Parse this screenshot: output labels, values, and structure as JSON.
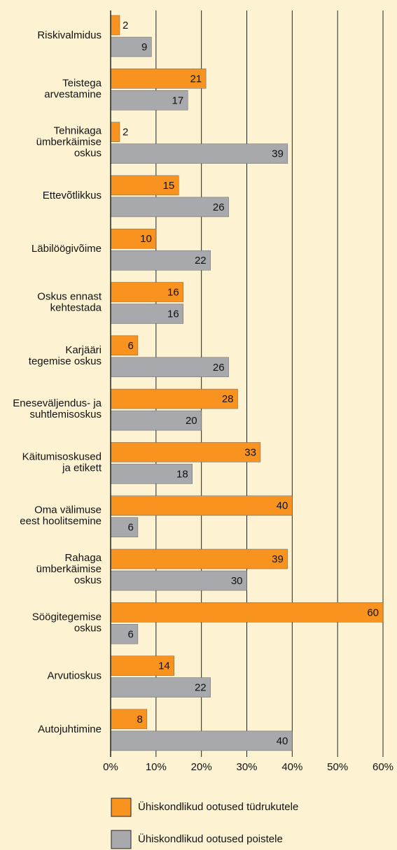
{
  "chart_data": {
    "type": "bar",
    "orientation": "horizontal",
    "categories": [
      "Riskivalmidus",
      "Teistega\narvestamine",
      "Tehnikaga\nümberkäimise\noskus",
      "Ettevõtlikkus",
      "Läbilöögivõime",
      "Oskus ennast\nkehtestada",
      "Karjääri\ntegemise oskus",
      "Eneseväljendus- ja\nsuhtlemisoskus",
      "Käitumisoskused\nja etikett",
      "Oma välimuse\neest hoolitsemine",
      "Rahaga\nümberkäimise\noskus",
      "Söögitegemise\noskus",
      "Arvutioskus",
      "Autojuhtimine"
    ],
    "series": [
      {
        "name": "Ühiskondlikud ootused tüdrukutele",
        "color": "#f7931e",
        "values": [
          2,
          21,
          2,
          15,
          10,
          16,
          6,
          28,
          33,
          40,
          39,
          60,
          14,
          8
        ]
      },
      {
        "name": "Ühiskondlikud ootused poistele",
        "color": "#a7a9ac",
        "values": [
          9,
          17,
          39,
          26,
          22,
          16,
          26,
          20,
          18,
          6,
          30,
          6,
          22,
          40
        ]
      }
    ],
    "xlim": [
      0,
      60
    ],
    "xticks": [
      {
        "value": 0,
        "label": "0%"
      },
      {
        "value": 10,
        "label": "10%"
      },
      {
        "value": 20,
        "label": "20%"
      },
      {
        "value": 30,
        "label": "30%"
      },
      {
        "value": 40,
        "label": "40%"
      },
      {
        "value": 50,
        "label": "50%"
      },
      {
        "value": 60,
        "label": "60%"
      }
    ],
    "grid": true
  }
}
